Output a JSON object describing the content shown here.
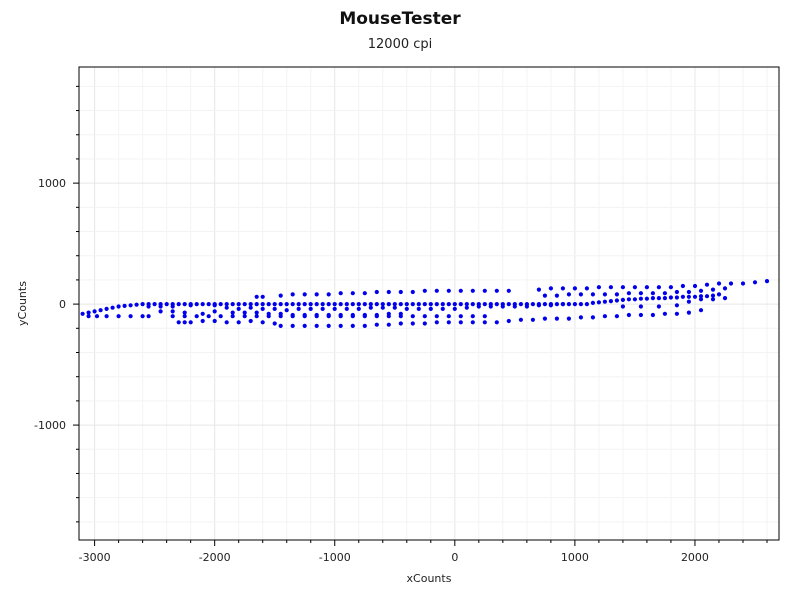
{
  "chart_data": {
    "type": "scatter",
    "title": "MouseTester",
    "subtitle": "12000 cpi",
    "xlabel": "xCounts",
    "ylabel": "yCounts",
    "xlim": [
      -3130,
      2700
    ],
    "ylim": [
      -1950,
      1960
    ],
    "x_ticks": [
      -3000,
      -2000,
      -1000,
      0,
      1000,
      2000
    ],
    "x_tick_labels": [
      "-3000",
      "-2000",
      "-1000",
      "0",
      "1000",
      "2000"
    ],
    "y_ticks": [
      -1000,
      0,
      1000
    ],
    "y_tick_labels": [
      "-1000",
      "0",
      "1000"
    ],
    "x_minor_step": 200,
    "y_minor_step": 200,
    "grid": true,
    "point_color": "#0000ee",
    "series": [
      {
        "points": [
          [
            -3100,
            -80
          ],
          [
            -3050,
            -70
          ],
          [
            -3000,
            -60
          ],
          [
            -2950,
            -50
          ],
          [
            -2900,
            -40
          ],
          [
            -2850,
            -30
          ],
          [
            -2800,
            -20
          ],
          [
            -2750,
            -15
          ],
          [
            -2700,
            -10
          ],
          [
            -2650,
            -5
          ],
          [
            -2600,
            0
          ],
          [
            -2550,
            0
          ],
          [
            -2500,
            0
          ],
          [
            -2450,
            0
          ],
          [
            -2400,
            0
          ],
          [
            -2350,
            0
          ],
          [
            -2300,
            0
          ],
          [
            -2250,
            0
          ],
          [
            -2200,
            0
          ],
          [
            -2150,
            0
          ],
          [
            -2100,
            0
          ],
          [
            -2050,
            0
          ],
          [
            -2000,
            0
          ],
          [
            -1950,
            0
          ],
          [
            -1900,
            0
          ],
          [
            -1850,
            0
          ],
          [
            -1800,
            0
          ],
          [
            -1750,
            0
          ],
          [
            -1700,
            0
          ],
          [
            -1650,
            0
          ],
          [
            -1600,
            0
          ],
          [
            -1550,
            0
          ],
          [
            -1500,
            0
          ],
          [
            -1450,
            0
          ],
          [
            -1400,
            0
          ],
          [
            -1350,
            0
          ],
          [
            -1300,
            0
          ],
          [
            -1250,
            0
          ],
          [
            -1200,
            0
          ],
          [
            -1150,
            0
          ],
          [
            -1100,
            0
          ],
          [
            -1050,
            0
          ],
          [
            -1000,
            0
          ],
          [
            -950,
            0
          ],
          [
            -900,
            0
          ],
          [
            -850,
            0
          ],
          [
            -800,
            0
          ],
          [
            -750,
            0
          ],
          [
            -700,
            0
          ],
          [
            -650,
            0
          ],
          [
            -600,
            0
          ],
          [
            -550,
            0
          ],
          [
            -500,
            0
          ],
          [
            -450,
            0
          ],
          [
            -400,
            0
          ],
          [
            -350,
            0
          ],
          [
            -300,
            0
          ],
          [
            -250,
            0
          ],
          [
            -200,
            0
          ],
          [
            -150,
            0
          ],
          [
            -100,
            0
          ],
          [
            -50,
            0
          ],
          [
            0,
            0
          ],
          [
            50,
            0
          ],
          [
            100,
            0
          ],
          [
            150,
            0
          ],
          [
            200,
            0
          ],
          [
            250,
            0
          ],
          [
            300,
            0
          ],
          [
            350,
            0
          ],
          [
            400,
            0
          ],
          [
            450,
            0
          ],
          [
            500,
            0
          ],
          [
            550,
            0
          ],
          [
            600,
            0
          ],
          [
            650,
            0
          ],
          [
            700,
            0
          ],
          [
            750,
            0
          ],
          [
            800,
            0
          ],
          [
            850,
            0
          ],
          [
            900,
            0
          ],
          [
            950,
            0
          ],
          [
            1000,
            0
          ],
          [
            1050,
            0
          ],
          [
            1100,
            0
          ],
          [
            1150,
            10
          ],
          [
            1200,
            15
          ],
          [
            1250,
            20
          ],
          [
            1300,
            25
          ],
          [
            1350,
            30
          ],
          [
            1400,
            35
          ],
          [
            1450,
            40
          ],
          [
            1500,
            40
          ],
          [
            1550,
            45
          ],
          [
            1600,
            45
          ],
          [
            1650,
            50
          ],
          [
            1700,
            50
          ],
          [
            1750,
            50
          ],
          [
            1800,
            55
          ],
          [
            1850,
            55
          ],
          [
            1900,
            60
          ],
          [
            1950,
            60
          ],
          [
            2000,
            60
          ],
          [
            2050,
            65
          ],
          [
            2100,
            65
          ],
          [
            2150,
            70
          ],
          [
            2200,
            80
          ],
          [
            -3050,
            -100
          ],
          [
            -2980,
            -100
          ],
          [
            -2900,
            -100
          ],
          [
            -2800,
            -100
          ],
          [
            -2700,
            -100
          ],
          [
            -2600,
            -100
          ],
          [
            -2550,
            -100
          ],
          [
            -2350,
            -100
          ],
          [
            -2250,
            -100
          ],
          [
            -2150,
            -100
          ],
          [
            -2050,
            -100
          ],
          [
            -1950,
            -100
          ],
          [
            -1850,
            -100
          ],
          [
            -1750,
            -100
          ],
          [
            -1650,
            -100
          ],
          [
            -1550,
            -100
          ],
          [
            -1450,
            -100
          ],
          [
            -1350,
            -100
          ],
          [
            -1250,
            -100
          ],
          [
            -1150,
            -100
          ],
          [
            -1050,
            -100
          ],
          [
            -950,
            -100
          ],
          [
            -850,
            -100
          ],
          [
            -750,
            -100
          ],
          [
            -650,
            -100
          ],
          [
            -550,
            -100
          ],
          [
            -450,
            -100
          ],
          [
            -350,
            -100
          ],
          [
            -250,
            -100
          ],
          [
            -150,
            -100
          ],
          [
            -50,
            -100
          ],
          [
            50,
            -100
          ],
          [
            150,
            -100
          ],
          [
            250,
            -100
          ],
          [
            -2550,
            -20
          ],
          [
            -2450,
            -20
          ],
          [
            -2350,
            -20
          ],
          [
            -2200,
            -10
          ],
          [
            -2000,
            -10
          ],
          [
            -1900,
            -30
          ],
          [
            -1800,
            -40
          ],
          [
            -1700,
            -30
          ],
          [
            -1600,
            -40
          ],
          [
            -1500,
            -40
          ],
          [
            -1400,
            -50
          ],
          [
            -1300,
            -40
          ],
          [
            -1200,
            -40
          ],
          [
            -1100,
            -40
          ],
          [
            -1000,
            -40
          ],
          [
            -900,
            -40
          ],
          [
            -800,
            -40
          ],
          [
            -700,
            -30
          ],
          [
            -600,
            -30
          ],
          [
            -500,
            -30
          ],
          [
            -400,
            -40
          ],
          [
            -300,
            -40
          ],
          [
            -200,
            -40
          ],
          [
            -100,
            -40
          ],
          [
            0,
            -40
          ],
          [
            100,
            -30
          ],
          [
            200,
            -20
          ],
          [
            300,
            -20
          ],
          [
            400,
            -20
          ],
          [
            500,
            -20
          ],
          [
            600,
            -20
          ],
          [
            700,
            -10
          ],
          [
            800,
            -10
          ],
          [
            900,
            0
          ],
          [
            -2300,
            -150
          ],
          [
            -2250,
            -150
          ],
          [
            -2200,
            -150
          ],
          [
            -2100,
            -140
          ],
          [
            -2000,
            -140
          ],
          [
            -1900,
            -150
          ],
          [
            -1800,
            -150
          ],
          [
            -1700,
            -140
          ],
          [
            -1600,
            -150
          ],
          [
            -1500,
            -160
          ],
          [
            -1450,
            -180
          ],
          [
            -1350,
            -180
          ],
          [
            -1250,
            -180
          ],
          [
            -1150,
            -180
          ],
          [
            -1050,
            -180
          ],
          [
            -950,
            -180
          ],
          [
            -850,
            -180
          ],
          [
            -750,
            -180
          ],
          [
            -650,
            -170
          ],
          [
            -550,
            -170
          ],
          [
            -450,
            -160
          ],
          [
            -350,
            -160
          ],
          [
            -250,
            -160
          ],
          [
            -150,
            -150
          ],
          [
            -50,
            -150
          ],
          [
            50,
            -150
          ],
          [
            150,
            -150
          ],
          [
            250,
            -150
          ],
          [
            350,
            -150
          ],
          [
            450,
            -140
          ],
          [
            550,
            -130
          ],
          [
            650,
            -130
          ],
          [
            750,
            -120
          ],
          [
            850,
            -120
          ],
          [
            950,
            -120
          ],
          [
            1050,
            -110
          ],
          [
            1150,
            -110
          ],
          [
            1250,
            -100
          ],
          [
            1350,
            -100
          ],
          [
            1450,
            -90
          ],
          [
            1550,
            -90
          ],
          [
            1650,
            -90
          ],
          [
            1750,
            -80
          ],
          [
            1850,
            -80
          ],
          [
            1950,
            -70
          ],
          [
            2050,
            -50
          ],
          [
            -2450,
            -60
          ],
          [
            -2350,
            -60
          ],
          [
            -2250,
            -70
          ],
          [
            -2100,
            -80
          ],
          [
            -2000,
            -60
          ],
          [
            -1850,
            -70
          ],
          [
            -1750,
            -70
          ],
          [
            -1650,
            -70
          ],
          [
            -1550,
            -80
          ],
          [
            -1450,
            -80
          ],
          [
            -1350,
            -90
          ],
          [
            -1250,
            -90
          ],
          [
            -1150,
            -90
          ],
          [
            -1050,
            -90
          ],
          [
            -950,
            -90
          ],
          [
            -850,
            -90
          ],
          [
            -750,
            -90
          ],
          [
            -650,
            -90
          ],
          [
            -550,
            -80
          ],
          [
            -450,
            -80
          ],
          [
            -1650,
            60
          ],
          [
            -1600,
            60
          ],
          [
            -1450,
            70
          ],
          [
            -1350,
            80
          ],
          [
            -1250,
            80
          ],
          [
            -1150,
            80
          ],
          [
            -1050,
            80
          ],
          [
            -950,
            90
          ],
          [
            -850,
            90
          ],
          [
            -750,
            90
          ],
          [
            -650,
            100
          ],
          [
            -550,
            100
          ],
          [
            -450,
            100
          ],
          [
            -350,
            100
          ],
          [
            -250,
            110
          ],
          [
            -150,
            110
          ],
          [
            -50,
            110
          ],
          [
            50,
            110
          ],
          [
            150,
            110
          ],
          [
            250,
            110
          ],
          [
            350,
            110
          ],
          [
            450,
            110
          ],
          [
            700,
            120
          ],
          [
            800,
            130
          ],
          [
            900,
            130
          ],
          [
            1000,
            130
          ],
          [
            1100,
            130
          ],
          [
            1200,
            140
          ],
          [
            1300,
            140
          ],
          [
            1400,
            140
          ],
          [
            1500,
            140
          ],
          [
            1600,
            140
          ],
          [
            1700,
            140
          ],
          [
            1800,
            140
          ],
          [
            1900,
            150
          ],
          [
            2000,
            150
          ],
          [
            2100,
            160
          ],
          [
            2200,
            170
          ],
          [
            2300,
            170
          ],
          [
            2400,
            170
          ],
          [
            2500,
            180
          ],
          [
            2600,
            190
          ],
          [
            750,
            70
          ],
          [
            850,
            70
          ],
          [
            950,
            80
          ],
          [
            1050,
            80
          ],
          [
            1150,
            80
          ],
          [
            1250,
            80
          ],
          [
            1350,
            80
          ],
          [
            1450,
            90
          ],
          [
            1550,
            90
          ],
          [
            1650,
            90
          ],
          [
            1750,
            90
          ],
          [
            1850,
            100
          ],
          [
            1950,
            100
          ],
          [
            2050,
            110
          ],
          [
            2150,
            120
          ],
          [
            2250,
            130
          ],
          [
            1400,
            -20
          ],
          [
            1550,
            -20
          ],
          [
            1700,
            -20
          ],
          [
            1850,
            -10
          ],
          [
            1950,
            20
          ],
          [
            2050,
            40
          ],
          [
            2150,
            40
          ],
          [
            2250,
            50
          ]
        ]
      }
    ]
  }
}
